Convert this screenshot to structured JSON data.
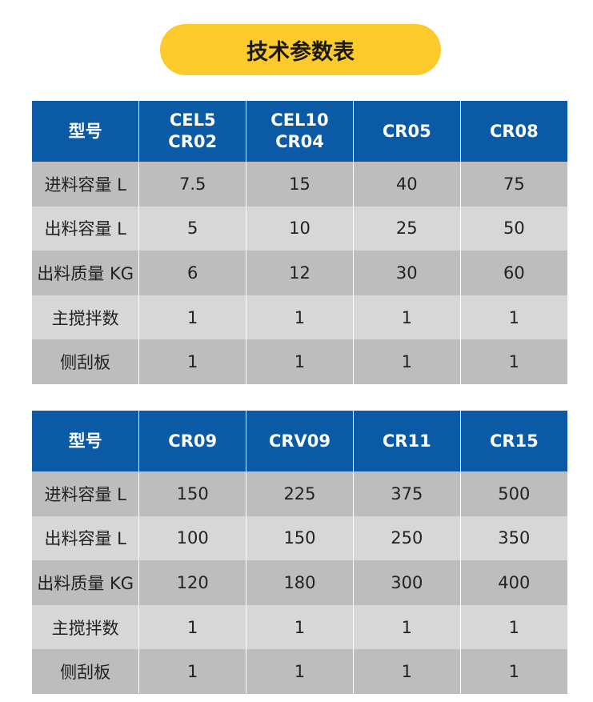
{
  "title": "技术参数表",
  "colors": {
    "header": "#0b5aa5",
    "title_pill": "#fccb2b",
    "row_dark": "#bdbdbd",
    "row_light": "#d7d7d7"
  },
  "tables": [
    {
      "headers": [
        "型号",
        "CEL5\nCR02",
        "CEL10\nCR04",
        "CR05",
        "CR08"
      ],
      "rows": [
        [
          "进料容量 L",
          "7.5",
          "15",
          "40",
          "75"
        ],
        [
          "出料容量 L",
          "5",
          "10",
          "25",
          "50"
        ],
        [
          "出料质量 KG",
          "6",
          "12",
          "30",
          "60"
        ],
        [
          "主搅拌数",
          "1",
          "1",
          "1",
          "1"
        ],
        [
          "侧刮板",
          "1",
          "1",
          "1",
          "1"
        ]
      ]
    },
    {
      "headers": [
        "型号",
        "CR09",
        "CRV09",
        "CR11",
        "CR15"
      ],
      "rows": [
        [
          "进料容量 L",
          "150",
          "225",
          "375",
          "500"
        ],
        [
          "出料容量 L",
          "100",
          "150",
          "250",
          "350"
        ],
        [
          "出料质量 KG",
          "120",
          "180",
          "300",
          "400"
        ],
        [
          "主搅拌数",
          "1",
          "1",
          "1",
          "1"
        ],
        [
          "侧刮板",
          "1",
          "1",
          "1",
          "1"
        ]
      ]
    }
  ]
}
